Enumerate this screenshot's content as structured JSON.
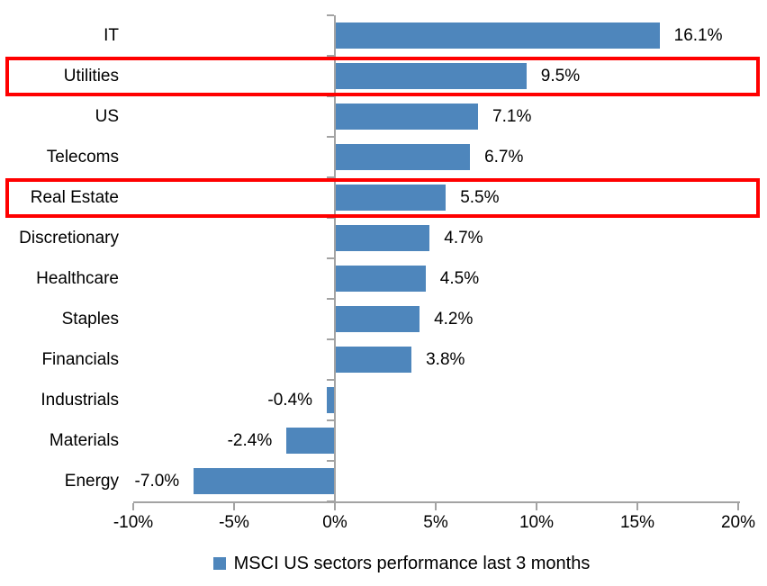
{
  "chart_data": {
    "type": "bar",
    "orientation": "horizontal",
    "title": "",
    "categories": [
      "IT",
      "Utilities",
      "US",
      "Telecoms",
      "Real Estate",
      "Discretionary",
      "Healthcare",
      "Staples",
      "Financials",
      "Industrials",
      "Materials",
      "Energy"
    ],
    "values": [
      16.1,
      9.5,
      7.1,
      6.7,
      5.5,
      4.7,
      4.5,
      4.2,
      3.8,
      -0.4,
      -2.4,
      -7.0
    ],
    "value_labels": [
      "16.1%",
      "9.5%",
      "7.1%",
      "6.7%",
      "5.5%",
      "4.7%",
      "4.5%",
      "4.2%",
      "3.8%",
      "-0.4%",
      "-2.4%",
      "-7.0%"
    ],
    "x_tick_values": [
      -10,
      -5,
      0,
      5,
      10,
      15,
      20
    ],
    "x_tick_labels": [
      "-10%",
      "-5%",
      "0%",
      "5%",
      "10%",
      "15%",
      "20%"
    ],
    "xlim": [
      -10,
      20
    ],
    "grid": false,
    "legend": "MSCI US sectors performance last 3 months",
    "legend_position": "bottom-center",
    "highlighted_categories": [
      "Utilities",
      "Real Estate"
    ],
    "colors": {
      "bar": "#4E86BC",
      "axis": "#A3A3A3",
      "highlight": "#FF0000",
      "text": "#000000",
      "background": "#FFFFFF"
    }
  }
}
